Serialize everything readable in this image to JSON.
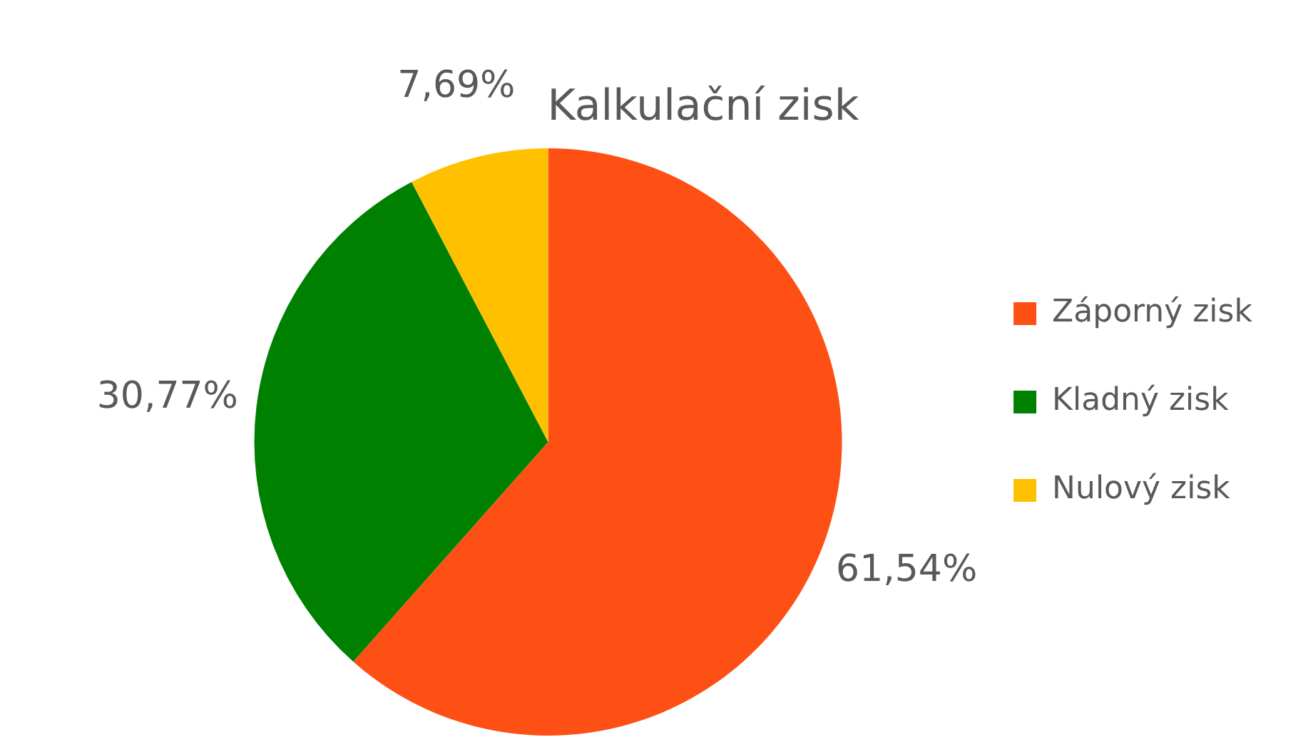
{
  "chart_data": {
    "type": "pie",
    "title": "Kalkulační zisk",
    "categories": [
      "Záporný zisk",
      "Kladný zisk",
      "Nulový zisk"
    ],
    "values": [
      61.54,
      30.77,
      7.69
    ],
    "value_labels": [
      "61,54%",
      "30,77%",
      "7,69%"
    ],
    "colors": [
      "#fe4f14",
      "#008000",
      "#ffc000"
    ],
    "legend": "right"
  }
}
